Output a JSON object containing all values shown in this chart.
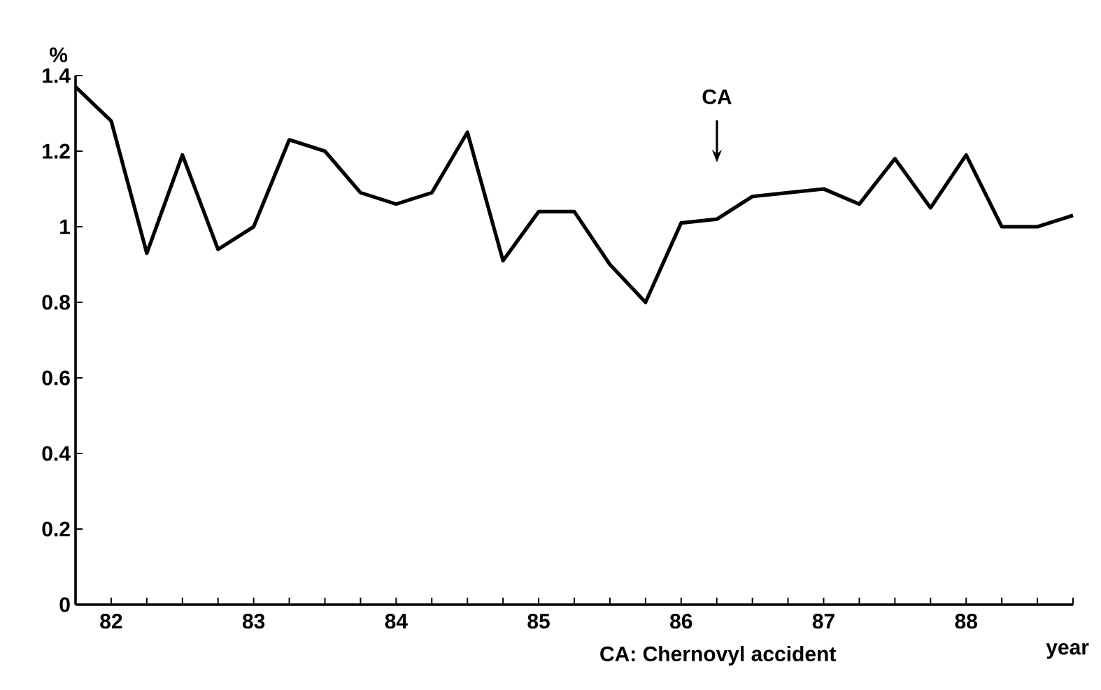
{
  "chart_data": {
    "type": "line",
    "ylabel": "%",
    "xlabel": "year",
    "annotations": [
      "CA",
      "CA: Chernovyl accident"
    ],
    "x": [
      81.75,
      82.0,
      82.25,
      82.5,
      82.75,
      83.0,
      83.25,
      83.5,
      83.75,
      84.0,
      84.25,
      84.5,
      84.75,
      85.0,
      85.25,
      85.5,
      85.75,
      86.0,
      86.25,
      86.5,
      86.75,
      87.0,
      87.25,
      87.5,
      87.75,
      88.0,
      88.25,
      88.5,
      88.75
    ],
    "series": [
      {
        "color": "#000000",
        "values": [
          1.37,
          1.28,
          0.93,
          1.19,
          0.94,
          1.0,
          1.23,
          1.2,
          1.09,
          1.06,
          1.09,
          1.25,
          0.91,
          1.04,
          1.04,
          0.9,
          0.8,
          1.01,
          1.02,
          1.08,
          1.09,
          1.1,
          1.06,
          1.18,
          1.05,
          1.19,
          1.0,
          1.0,
          1.03
        ]
      }
    ],
    "xlim": [
      81.75,
      88.75
    ],
    "xticks": [
      {
        "value": 81.75,
        "label": null
      },
      82,
      {
        "value": 82.25,
        "label": null
      },
      {
        "value": 82.5,
        "label": null
      },
      {
        "value": 82.75,
        "label": null
      },
      83,
      {
        "value": 83.25,
        "label": null
      },
      {
        "value": 83.5,
        "label": null
      },
      {
        "value": 83.75,
        "label": null
      },
      84,
      {
        "value": 84.25,
        "label": null
      },
      {
        "value": 84.5,
        "label": null
      },
      {
        "value": 84.75,
        "label": null
      },
      85,
      {
        "value": 85.25,
        "label": null
      },
      {
        "value": 85.5,
        "label": null
      },
      {
        "value": 85.75,
        "label": null
      },
      86,
      {
        "value": 86.25,
        "label": null
      },
      {
        "value": 86.5,
        "label": null
      },
      {
        "value": 86.75,
        "label": null
      },
      87,
      {
        "value": 87.25,
        "label": null
      },
      {
        "value": 87.5,
        "label": null
      },
      {
        "value": 87.75,
        "label": null
      },
      88,
      {
        "value": 88.25,
        "label": null
      },
      {
        "value": 88.5,
        "label": null
      },
      {
        "value": 88.75,
        "label": null
      }
    ],
    "ylim": [
      0,
      1.4
    ],
    "yticks": [
      0,
      0.2,
      0.4,
      0.6,
      0.8,
      1,
      1.2,
      1.4
    ],
    "grid": false,
    "marker": "none",
    "line_style": "solid"
  }
}
